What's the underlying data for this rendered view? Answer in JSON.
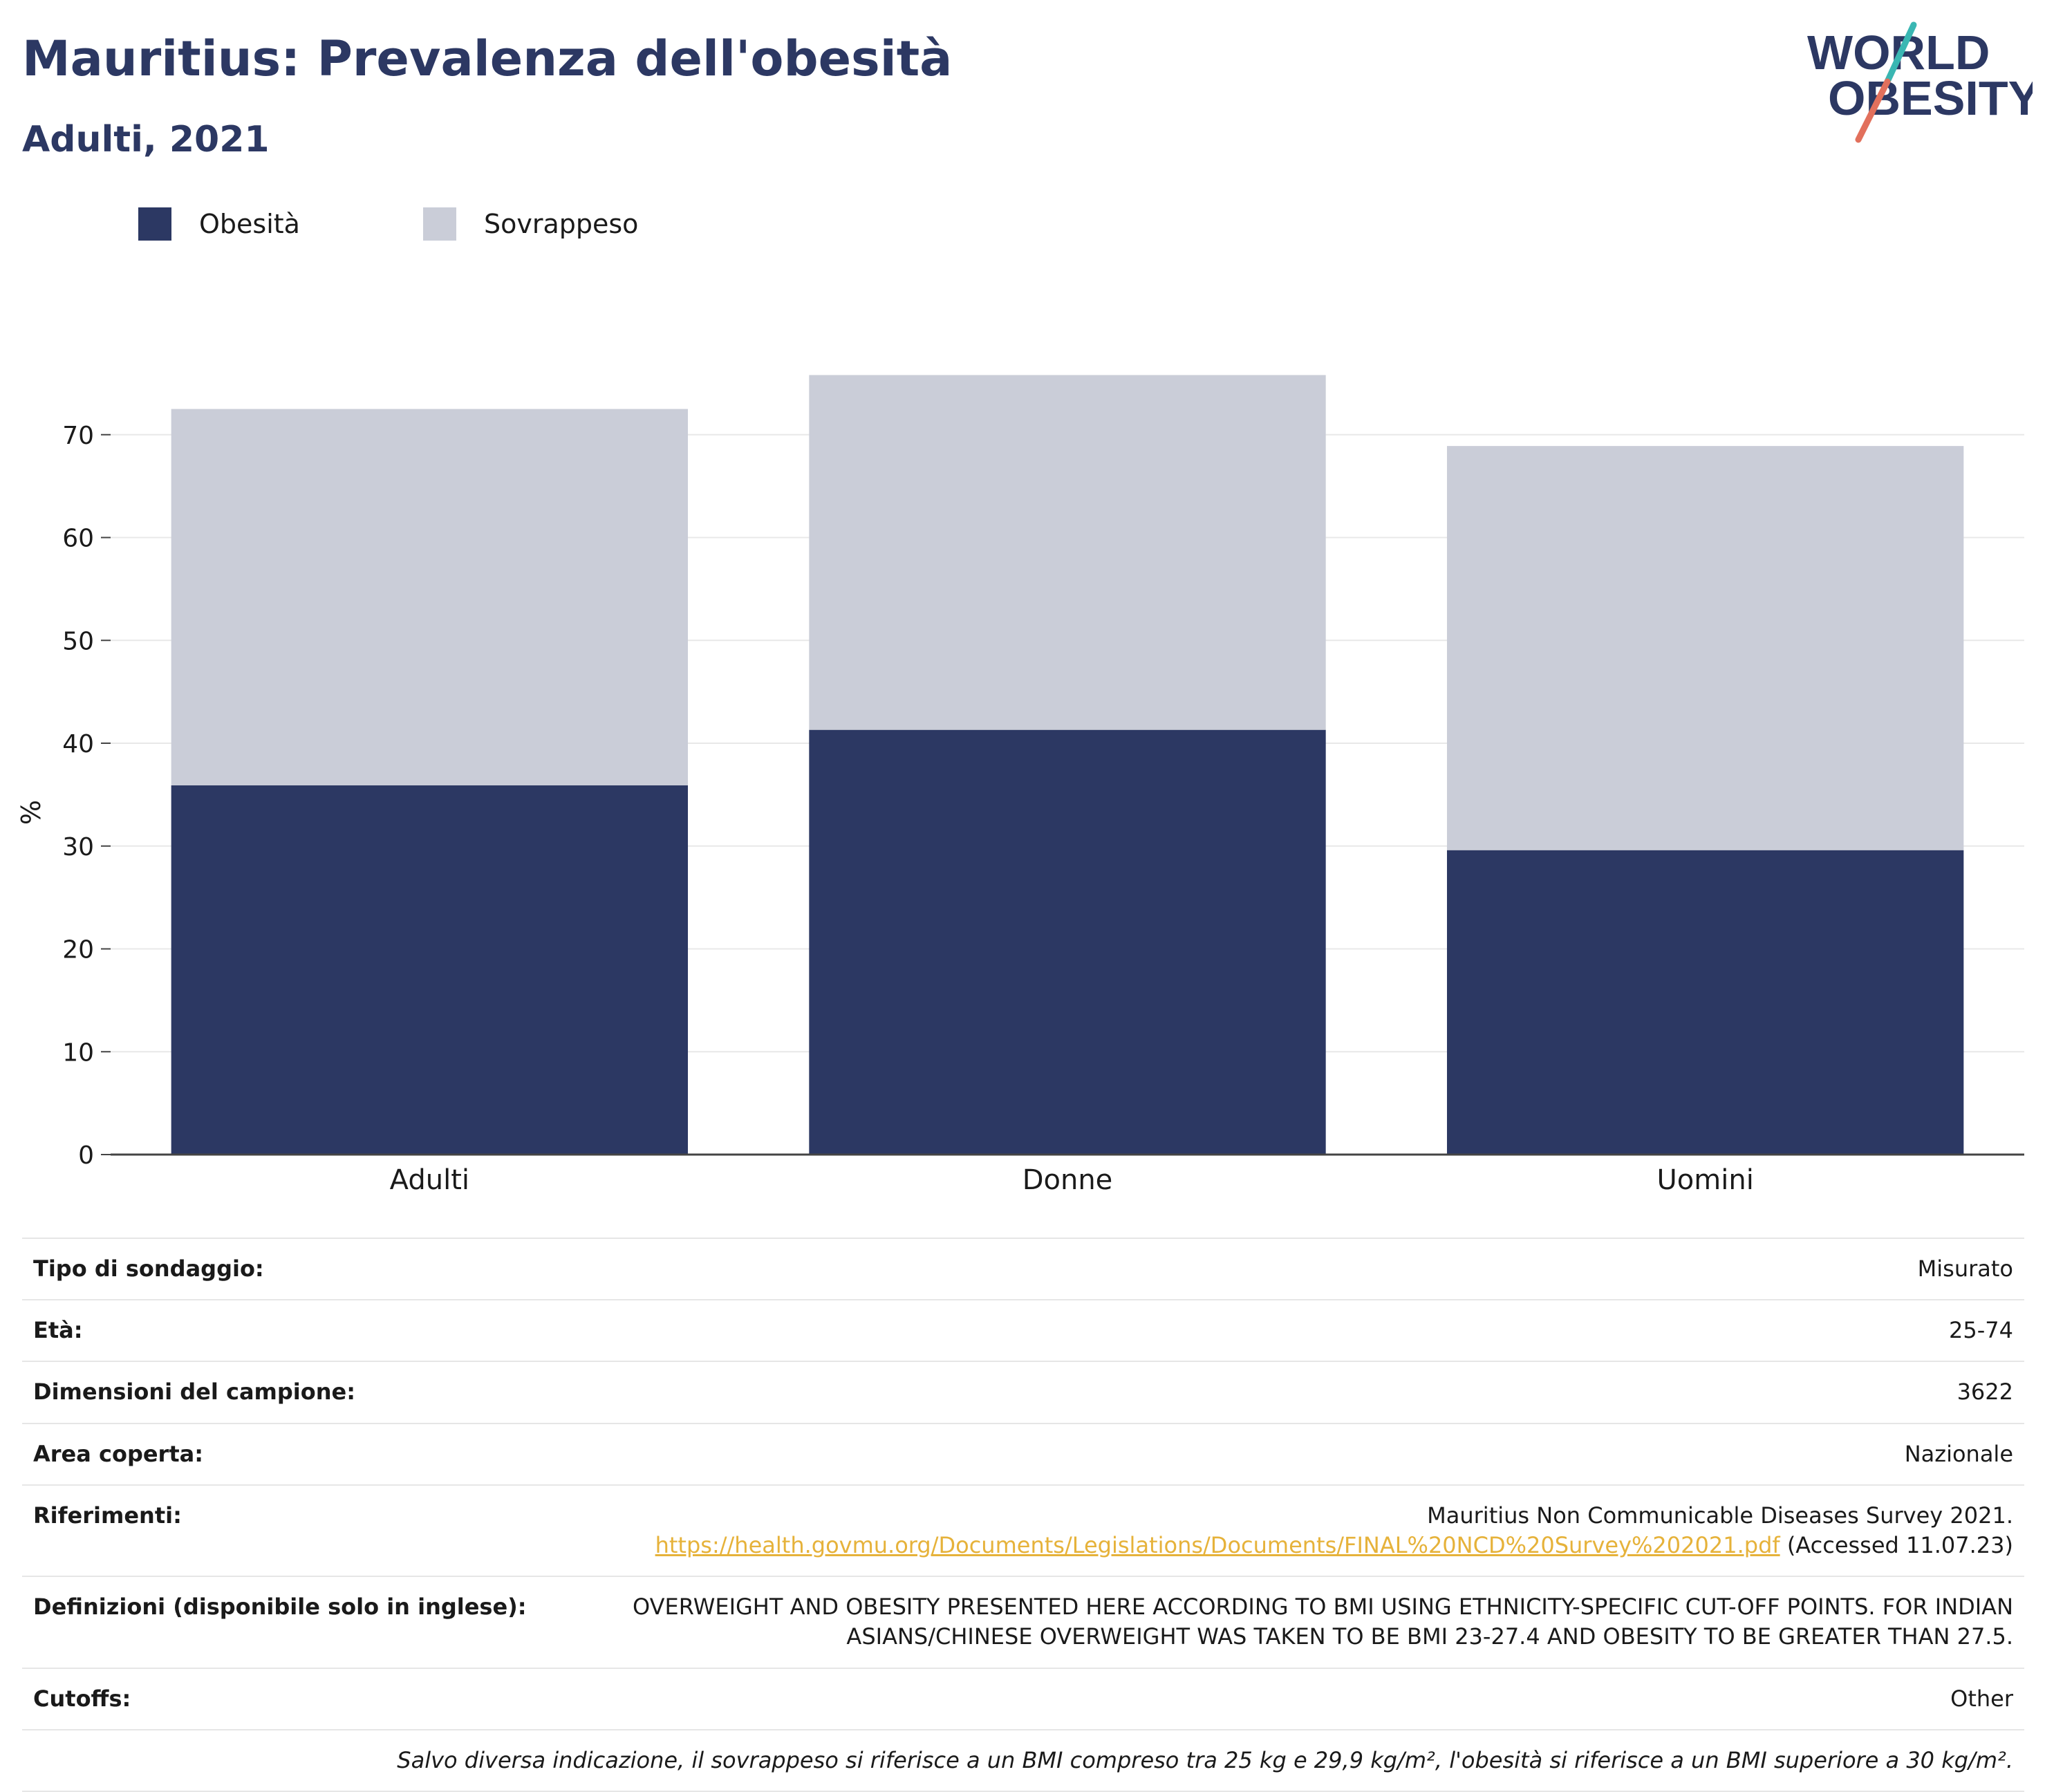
{
  "header": {
    "title": "Mauritius: Prevalenza dell'obesità",
    "subtitle": "Adulti, 2021"
  },
  "logo": {
    "line1": "WORLD",
    "line2": "OBESITY",
    "colors": {
      "text": "#2c3863",
      "accent_teal": "#3ab7b3",
      "accent_coral": "#e2705c"
    }
  },
  "legend": {
    "items": [
      {
        "label": "Obesità",
        "color": "#2c3863"
      },
      {
        "label": "Sovrappeso",
        "color": "#cacdd8"
      }
    ]
  },
  "chart_data": {
    "type": "bar",
    "stacked": true,
    "categories": [
      "Adulti",
      "Donne",
      "Uomini"
    ],
    "series": [
      {
        "name": "Obesità",
        "color": "#2c3863",
        "values": [
          35.9,
          41.3,
          29.6
        ]
      },
      {
        "name": "Sovrappeso",
        "color": "#cacdd8",
        "values": [
          36.6,
          34.5,
          39.3
        ]
      }
    ],
    "ylabel": "%",
    "ylim": [
      0,
      80
    ],
    "yticks": [
      0,
      10,
      20,
      30,
      40,
      50,
      60,
      70
    ],
    "grid": true,
    "legend_position": "top-left"
  },
  "info": {
    "rows": [
      {
        "key": "Tipo di sondaggio:",
        "value": "Misurato"
      },
      {
        "key": "Età:",
        "value": "25-74"
      },
      {
        "key": "Dimensioni del campione:",
        "value": "3622"
      },
      {
        "key": "Area coperta:",
        "value": "Nazionale"
      }
    ],
    "references": {
      "key": "Riferimenti:",
      "line1": "Mauritius Non Communicable Diseases Survey 2021.",
      "link": "https://health.govmu.org/Documents/Legislations/Documents/FINAL%20NCD%20Survey%202021.pdf",
      "accessed": " (Accessed 11.07.23)"
    },
    "definitions": {
      "key": "Definizioni (disponibile solo in inglese):",
      "value": "OVERWEIGHT AND OBESITY PRESENTED HERE ACCORDING TO BMI USING ETHNICITY-SPECIFIC CUT-OFF POINTS. FOR INDIAN ASIANS/CHINESE OVERWEIGHT WAS TAKEN TO BE BMI 23-27.4 AND OBESITY TO BE GREATER THAN 27.5."
    },
    "cutoffs": {
      "key": "Cutoffs:",
      "value": "Other"
    },
    "note": "Salvo diversa indicazione, il sovrappeso si riferisce a un BMI compreso tra 25 kg e 29,9 kg/m², l'obesità si riferisce a un BMI superiore a 30 kg/m²."
  }
}
